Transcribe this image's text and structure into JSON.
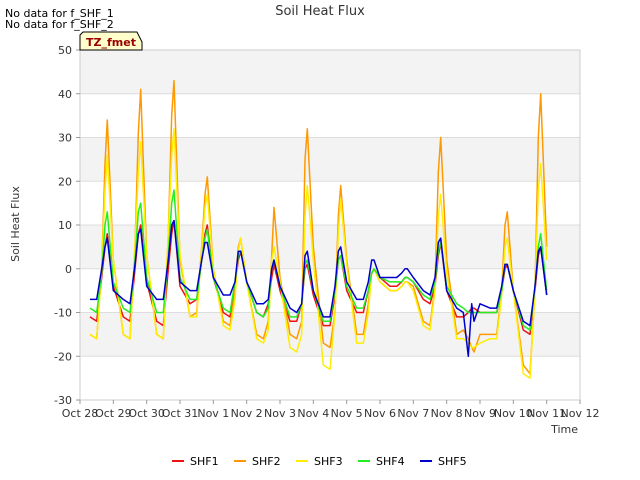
{
  "notes": [
    "No data for f_SHF_1",
    "No data for f_SHF_2"
  ],
  "chart_data": {
    "type": "line",
    "title": "Soil Heat Flux",
    "xlabel": "Time",
    "ylabel": "Soil Heat Flux",
    "ylim": [
      -30,
      50
    ],
    "yticks": [
      -30,
      -20,
      -10,
      0,
      10,
      20,
      30,
      40,
      50
    ],
    "xlim": [
      0,
      15
    ],
    "xticks": [
      "Oct 28",
      "Oct 29",
      "Oct 30",
      "Oct 31",
      "Nov 1",
      "Nov 2",
      "Nov 3",
      "Nov 4",
      "Nov 5",
      "Nov 6",
      "Nov 7",
      "Nov 8",
      "Nov 9",
      "Nov 10",
      "Nov 11",
      "Nov 12"
    ],
    "badge": "TZ_fmet",
    "grid": true,
    "legend_position": "bottom",
    "x": [
      0.3,
      0.5,
      0.65,
      0.75,
      0.82,
      1.0,
      1.3,
      1.5,
      1.65,
      1.75,
      1.82,
      2.0,
      2.3,
      2.5,
      2.65,
      2.75,
      2.82,
      3.0,
      3.3,
      3.5,
      3.65,
      3.75,
      3.82,
      4.0,
      4.3,
      4.5,
      4.65,
      4.75,
      4.82,
      5.0,
      5.3,
      5.5,
      5.65,
      5.75,
      5.82,
      6.0,
      6.3,
      6.5,
      6.65,
      6.75,
      6.82,
      7.0,
      7.3,
      7.5,
      7.65,
      7.75,
      7.82,
      8.0,
      8.3,
      8.5,
      8.65,
      8.75,
      8.82,
      9.0,
      9.3,
      9.5,
      9.65,
      9.75,
      9.82,
      10.0,
      10.3,
      10.5,
      10.65,
      10.75,
      10.82,
      11.0,
      11.3,
      11.5,
      11.65,
      11.75,
      11.82,
      12.0,
      12.3,
      12.5,
      12.65,
      12.75,
      12.82,
      13.0,
      13.3,
      13.5,
      13.65,
      13.75,
      13.82,
      14.0
    ],
    "series": [
      {
        "name": "SHF1",
        "color": "#ee1111",
        "values": [
          -11,
          -12,
          -2,
          5,
          8,
          -4,
          -11,
          -12,
          0,
          8,
          10,
          -3,
          -12,
          -13,
          0,
          8,
          11,
          -4,
          -8,
          -7,
          2,
          8,
          10,
          -2,
          -10,
          -11,
          -4,
          2,
          4,
          -3,
          -10,
          -11,
          -8,
          -2,
          1,
          -5,
          -12,
          -12,
          -8,
          0,
          1,
          -6,
          -13,
          -13,
          -6,
          2,
          3,
          -5,
          -10,
          -10,
          -5,
          -1,
          0,
          -2,
          -4,
          -4,
          -3,
          -2,
          -2,
          -3,
          -7,
          -8,
          -4,
          3,
          6,
          -5,
          -11,
          -11,
          -10,
          -9,
          -9,
          -10,
          -10,
          -10,
          -5,
          0,
          1,
          -5,
          -14,
          -15,
          -5,
          3,
          5,
          -6
        ]
      },
      {
        "name": "SHF2",
        "color": "#ff9900",
        "values": [
          -15,
          -16,
          0,
          24,
          34,
          2,
          -15,
          -16,
          5,
          31,
          41,
          3,
          -15,
          -16,
          8,
          35,
          43,
          2,
          -11,
          -10,
          5,
          17,
          21,
          0,
          -12,
          -13,
          -5,
          5,
          7,
          -3,
          -15,
          -16,
          -12,
          3,
          14,
          -2,
          -15,
          -16,
          -12,
          25,
          32,
          5,
          -17,
          -18,
          -10,
          12,
          19,
          2,
          -15,
          -15,
          -8,
          -1,
          0,
          -3,
          -5,
          -5,
          -4,
          -3,
          -3,
          -4,
          -12,
          -13,
          -4,
          22,
          30,
          2,
          -15,
          -14,
          -16,
          -18,
          -19,
          -15,
          -15,
          -15,
          -5,
          10,
          13,
          -5,
          -22,
          -24,
          -5,
          30,
          40,
          5
        ]
      },
      {
        "name": "SHF3",
        "color": "#ffee00",
        "values": [
          -15,
          -16,
          0,
          18,
          26,
          2,
          -15,
          -16,
          5,
          22,
          29,
          3,
          -15,
          -16,
          8,
          26,
          32,
          3,
          -11,
          -11,
          4,
          14,
          17,
          0,
          -13,
          -14,
          -7,
          4,
          7,
          -3,
          -16,
          -17,
          -14,
          2,
          5,
          -3,
          -18,
          -19,
          -15,
          12,
          19,
          2,
          -22,
          -23,
          -10,
          8,
          16,
          1,
          -17,
          -17,
          -10,
          -1,
          0,
          -3,
          -5,
          -5,
          -4,
          -3,
          -3,
          -5,
          -13,
          -14,
          -5,
          12,
          17,
          -1,
          -16,
          -16,
          -17,
          -18,
          -18,
          -17,
          -16,
          -16,
          -6,
          5,
          7,
          -5,
          -24,
          -25,
          -5,
          18,
          24,
          2
        ]
      },
      {
        "name": "SHF4",
        "color": "#22ee22",
        "values": [
          -9,
          -10,
          -1,
          10,
          13,
          -3,
          -9,
          -10,
          2,
          13,
          15,
          -2,
          -10,
          -10,
          3,
          15,
          18,
          -2,
          -7,
          -7,
          2,
          7,
          9,
          -2,
          -9,
          -10,
          -3,
          3,
          4,
          -3,
          -10,
          -11,
          -9,
          0,
          2,
          -4,
          -11,
          -11,
          -8,
          1,
          2,
          -5,
          -12,
          -12,
          -5,
          2,
          3,
          -4,
          -9,
          -9,
          -5,
          -1,
          0,
          -2,
          -3,
          -3,
          -3,
          -2,
          -2,
          -3,
          -6,
          -7,
          -3,
          4,
          6,
          -4,
          -8,
          -9,
          -10,
          -10,
          -10,
          -10,
          -10,
          -10,
          -5,
          1,
          1,
          -5,
          -13,
          -14,
          -4,
          5,
          8,
          -5
        ]
      },
      {
        "name": "SHF5",
        "color": "#0000cc",
        "values": [
          -7,
          -7,
          0,
          5,
          7,
          -5,
          -7,
          -8,
          1,
          8,
          9,
          -4,
          -7,
          -7,
          2,
          10,
          11,
          -3,
          -5,
          -5,
          2,
          6,
          6,
          -2,
          -6,
          -6,
          -3,
          4,
          4,
          -3,
          -8,
          -8,
          -7,
          0,
          2,
          -4,
          -9,
          -10,
          -8,
          3,
          4,
          -5,
          -11,
          -11,
          -4,
          4,
          5,
          -3,
          -7,
          -7,
          -3,
          2,
          2,
          -2,
          -2,
          -2,
          -1,
          0,
          0,
          -2,
          -5,
          -6,
          -2,
          6,
          7,
          -5,
          -9,
          -10,
          -20,
          -8,
          -12,
          -8,
          -9,
          -9,
          -4,
          1,
          1,
          -5,
          -12,
          -13,
          -4,
          4,
          5,
          -6
        ]
      }
    ]
  }
}
